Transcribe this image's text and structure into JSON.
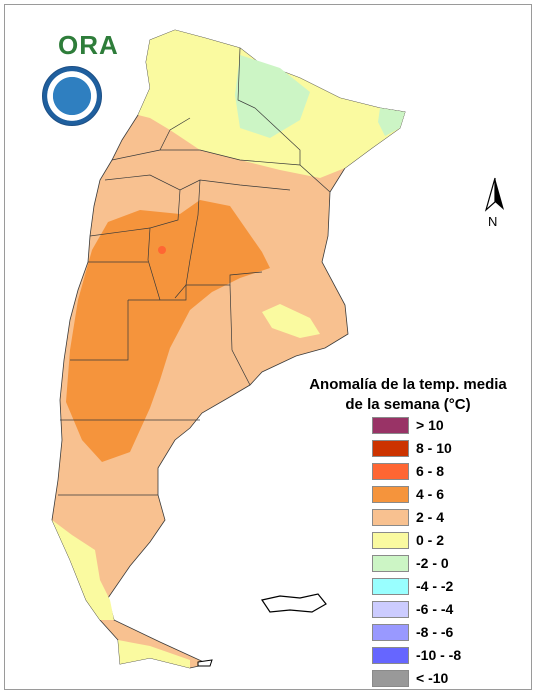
{
  "logo": {
    "text": "ORA"
  },
  "seal": {
    "name": "servicio-meteorologico-nacional-seal"
  },
  "north_arrow": {
    "label": "N"
  },
  "legend": {
    "title_line1": "Anomalía de la temp. media",
    "title_line2": "de la semana (°C)",
    "classes": [
      {
        "label": "> 10",
        "color": "#993366"
      },
      {
        "label": "8 - 10",
        "color": "#cc3300"
      },
      {
        "label": "6 - 8",
        "color": "#ff6633"
      },
      {
        "label": "4 - 6",
        "color": "#f5943c"
      },
      {
        "label": "2 - 4",
        "color": "#f8c190"
      },
      {
        "label": "0 - 2",
        "color": "#fafaa0"
      },
      {
        "label": "-2 - 0",
        "color": "#ccf5c5"
      },
      {
        "label": "-4 - -2",
        "color": "#99ffff"
      },
      {
        "label": "-6 - -4",
        "color": "#ccccff"
      },
      {
        "label": "-8 - -6",
        "color": "#9999ff"
      },
      {
        "label": "-10 - -8",
        "color": "#6666ff"
      },
      {
        "label": "< -10",
        "color": "#999999"
      }
    ]
  },
  "colors": {
    "land_0_2": "#fafaa0",
    "land_2_4": "#f8c190",
    "land_4_6": "#f5943c",
    "land_6_8": "#ff6633",
    "land_neg2_0": "#ccf5c5",
    "border": "#3a3a3a"
  }
}
